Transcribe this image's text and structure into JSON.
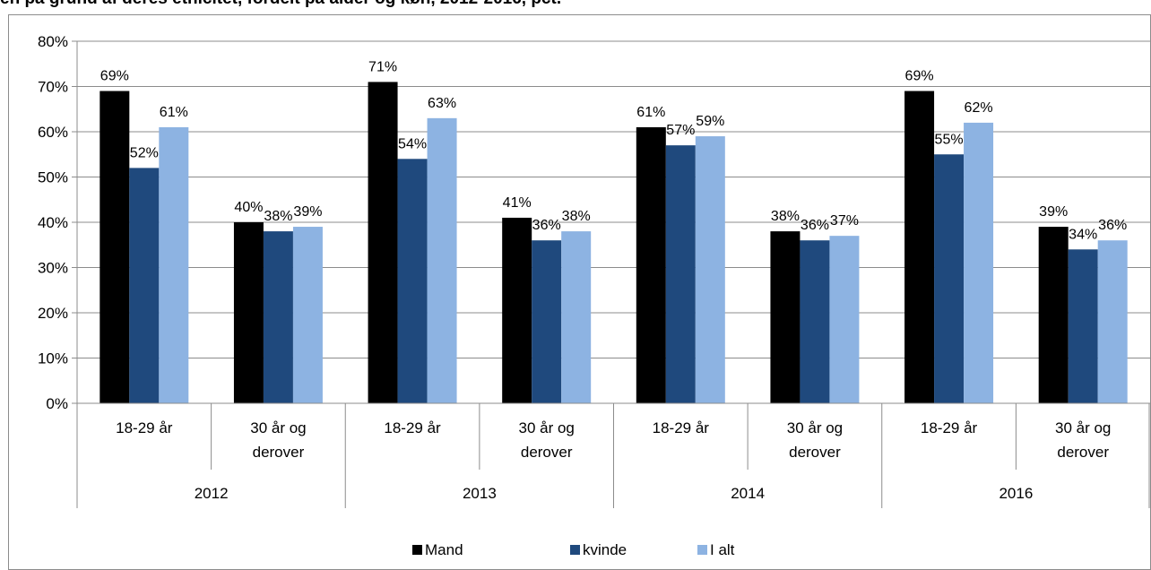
{
  "chart_data": {
    "type": "bar",
    "title": "en på grund af deres etnicitet, fordelt på alder og køn, 2012-2016, pct.",
    "groups": [
      {
        "year": "2012",
        "categories": [
          [
            "18-29 år"
          ],
          [
            "30 år og",
            "derover"
          ]
        ]
      },
      {
        "year": "2013",
        "categories": [
          [
            "18-29 år"
          ],
          [
            "30 år og",
            "derover"
          ]
        ]
      },
      {
        "year": "2014",
        "categories": [
          [
            "18-29 år"
          ],
          [
            "30 år og",
            "derover"
          ]
        ]
      },
      {
        "year": "2016",
        "categories": [
          [
            "18-29 år"
          ],
          [
            "30 år og",
            "derover"
          ]
        ]
      }
    ],
    "series": [
      {
        "name": "Mand",
        "color": "#000000",
        "values": [
          69,
          40,
          71,
          41,
          61,
          38,
          69,
          39
        ]
      },
      {
        "name": "kvinde",
        "color": "#1f497d",
        "values": [
          52,
          38,
          54,
          36,
          57,
          36,
          55,
          34
        ]
      },
      {
        "name": "I alt",
        "color": "#8db3e2",
        "values": [
          61,
          39,
          63,
          38,
          59,
          37,
          62,
          36
        ]
      }
    ],
    "data_labels": [
      [
        "69%",
        "40%",
        "71%",
        "41%",
        "61%",
        "38%",
        "69%",
        "39%"
      ],
      [
        "52%",
        "38%",
        "54%",
        "36%",
        "57%",
        "36%",
        "55%",
        "34%"
      ],
      [
        "61%",
        "39%",
        "63%",
        "38%",
        "59%",
        "37%",
        "62%",
        "36%"
      ]
    ],
    "y_ticks": [
      "0%",
      "10%",
      "20%",
      "30%",
      "40%",
      "50%",
      "60%",
      "70%",
      "80%"
    ],
    "ylim": [
      0,
      80
    ],
    "grid": true,
    "legend": "bottom"
  }
}
